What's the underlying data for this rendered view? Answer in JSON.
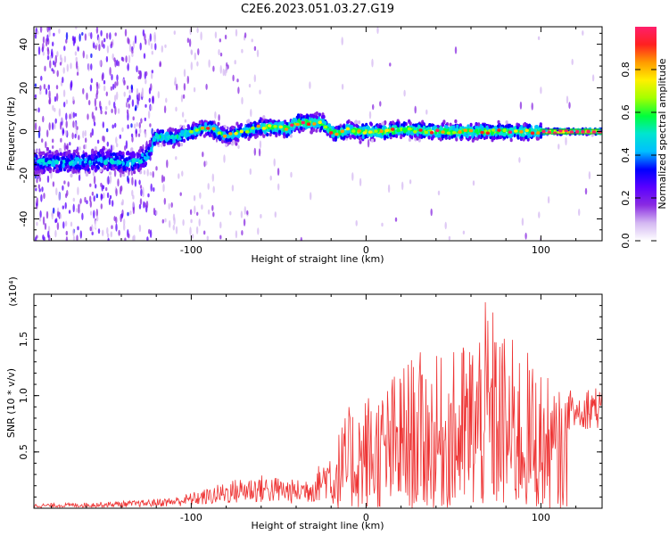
{
  "title": "C2E6.2023.051.03.27.G19",
  "chart_data": [
    {
      "type": "heatmap",
      "xlabel": "Height of straight line (km)",
      "ylabel": "Frequency (Hz)",
      "xlim": [
        -190,
        135
      ],
      "ylim": [
        -50,
        48
      ],
      "xticks": [
        -100,
        0,
        100
      ],
      "yticks": [
        -40,
        -20,
        0,
        20,
        40
      ],
      "ridge": {
        "x": [
          -190,
          -180,
          -170,
          -160,
          -150,
          -140,
          -130,
          -125,
          -120,
          -110,
          -100,
          -90,
          -80,
          -70,
          -60,
          -50,
          -45,
          -40,
          -35,
          -30,
          -25,
          -20,
          -15,
          -10,
          -5,
          0,
          10,
          20,
          40,
          60,
          80,
          100,
          135
        ],
        "freq": [
          -14,
          -14,
          -14,
          -14,
          -13,
          -14,
          -14,
          -11,
          -2,
          -3,
          0,
          2,
          -2,
          0,
          2,
          2,
          1,
          4,
          4,
          4,
          4,
          0,
          -1,
          1,
          0,
          0,
          0,
          1,
          0,
          0,
          0,
          0,
          0
        ]
      },
      "colorbar": {
        "label": "Normalized spectral amplitude",
        "range": [
          0.0,
          1.0
        ],
        "ticks": [
          "0.0",
          "0.2",
          "0.4",
          "0.6",
          "0.8"
        ],
        "tick_values": [
          0.0,
          0.2,
          0.4,
          0.6,
          0.8
        ],
        "colormap": [
          "#ffffff",
          "#d4b8f2",
          "#8a2be2",
          "#5a00ff",
          "#0000ff",
          "#00bfff",
          "#00e5d0",
          "#00ff3c",
          "#a4ff00",
          "#fff000",
          "#ff9c00",
          "#ff2020",
          "#ff1f6b"
        ]
      },
      "zero_line_color": "#2a9d2a"
    },
    {
      "type": "line",
      "xlabel": "Height of straight line (km)",
      "ylabel": "SNR (10 * v/v)",
      "multiplier": "(x10⁴)",
      "xlim": [
        -190,
        135
      ],
      "ylim": [
        0,
        1.9
      ],
      "xticks": [
        -100,
        0,
        100
      ],
      "yticks": [
        0.5,
        1.0,
        1.5
      ],
      "ytick_labels": [
        "0.5",
        "1.0",
        "1.5"
      ],
      "color": "#ee3333",
      "envelope": {
        "x": [
          -190,
          -160,
          -130,
          -110,
          -100,
          -90,
          -80,
          -70,
          -60,
          -50,
          -40,
          -30,
          -20,
          -10,
          0,
          10,
          20,
          30,
          40,
          50,
          60,
          70,
          80,
          90,
          100,
          110,
          120,
          130,
          135
        ],
        "peak": [
          0.04,
          0.05,
          0.07,
          0.1,
          0.14,
          0.18,
          0.24,
          0.28,
          0.3,
          0.28,
          0.25,
          0.32,
          0.55,
          0.9,
          1.05,
          1.1,
          1.3,
          1.4,
          1.35,
          1.4,
          1.6,
          1.88,
          1.55,
          1.45,
          1.25,
          1.05,
          1.05,
          1.1,
          1.05
        ]
      }
    }
  ]
}
